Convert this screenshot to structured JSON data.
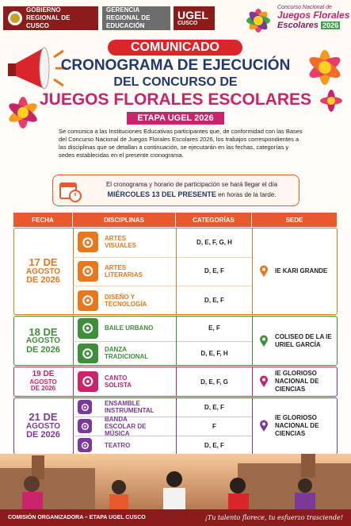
{
  "header": {
    "gov": "GOBIERNO REGIONAL DE CUSCO",
    "gre": "GERENCIA REGIONAL DE EDUCACIÓN",
    "ugel": "UGEL",
    "ugel_sub": "CUSCO",
    "brand_top": "Concurso Nacional de",
    "brand_main": "Juegos Florales",
    "brand_sub": "Escolares",
    "brand_year": "2026"
  },
  "titles": {
    "badge": "COMUNICADO",
    "line1": "CRONOGRAMA DE EJECUCIÓN",
    "line2": "DEL CONCURSO DE",
    "line3": "JUEGOS FLORALES ESCOLARES",
    "stage": "ETAPA UGEL 2026"
  },
  "intro": "Se comunica a las Instituciones Educativas participantes que, de conformidad con las Bases del Concurso Nacional de Juegos Florales Escolares 2026, los trabajos correspondientes a las disciplinas que se detallan a continuación, se ejecutarán en las fechas, categorías y sedes establecidas en el presente cronograma.",
  "notice": {
    "text": "El cronograma y horario de participación se hará llegar el día",
    "highlight": "MIÉRCOLES 13 DEL PRESENTE",
    "tail": "en horas de la tarde."
  },
  "table": {
    "headers": [
      "FECHA",
      "DISCIPLINAS",
      "CATEGORÍAS",
      "SEDE"
    ],
    "groups": [
      {
        "date": [
          "17 DE",
          "AGOSTO",
          "DE 2026"
        ],
        "color": "#e8781e",
        "sede": "IE KARI GRANDE",
        "rows": [
          {
            "discipline": "ARTES VISUALES",
            "categories": "D, E, F, G, H"
          },
          {
            "discipline": "ARTES LITERARIAS",
            "categories": "D, E, F"
          },
          {
            "discipline": "DISEÑO Y TECNOLOGÍA",
            "categories": "D, E, F"
          }
        ]
      },
      {
        "date": [
          "18 DE",
          "AGOSTO",
          "DE 2026"
        ],
        "color": "#3f8f3a",
        "sede": "COLISEO DE LA IE URIEL GARCÍA",
        "rows": [
          {
            "discipline": "BAILE URBANO",
            "categories": "E, F"
          },
          {
            "discipline": "DANZA TRADICIONAL",
            "categories": "D, E, F, H"
          }
        ]
      },
      {
        "date": [
          "19 DE",
          "AGOSTO",
          "DE 2026"
        ],
        "color": "#c8246a",
        "sede": "IE GLORIOSO NACIONAL DE CIENCIAS",
        "rows": [
          {
            "discipline": "CANTO SOLISTA",
            "categories": "D, E, F, G"
          }
        ]
      },
      {
        "date": [
          "21 DE",
          "AGOSTO",
          "DE 2026"
        ],
        "color": "#7b3a97",
        "sede": "IE GLORIOSO NACIONAL DE CIENCIAS",
        "rows": [
          {
            "discipline": "ENSAMBLE INSTRUMENTAL",
            "categories": "D, E, F"
          },
          {
            "discipline": "BANDA ESCOLAR DE MÚSICA",
            "categories": "F"
          },
          {
            "discipline": "TEATRO",
            "categories": "D, E, F"
          }
        ]
      }
    ]
  },
  "footer": {
    "left": "COMISIÓN ORGANIZADORA – ETAPA UGEL CUSCO",
    "right": "¡Tu talento florece, tu esfuerzo trasciende!"
  }
}
